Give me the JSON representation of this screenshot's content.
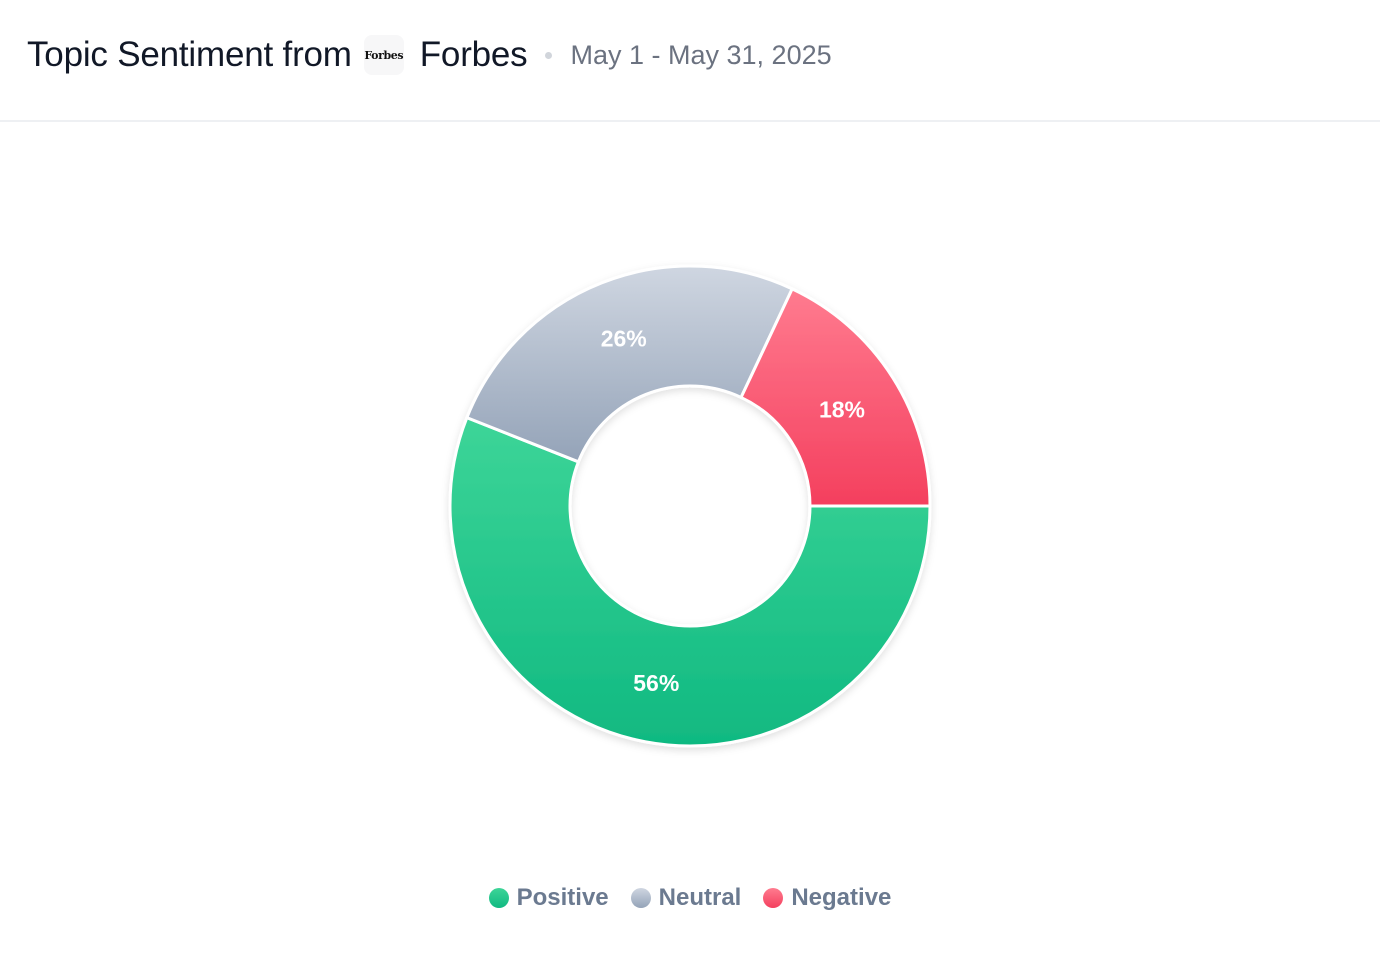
{
  "header": {
    "title_prefix": "Topic Sentiment from",
    "source_logo_text": "Forbes",
    "source_name": "Forbes",
    "date_range": "May 1 - May 31, 2025"
  },
  "chart_data": {
    "type": "pie",
    "variant": "donut",
    "categories": [
      "Positive",
      "Neutral",
      "Negative"
    ],
    "values": [
      56,
      26,
      18
    ],
    "unit": "%",
    "data_labels": [
      "56%",
      "26%",
      "18%"
    ],
    "legend": "bottom-center",
    "colors": {
      "Positive": [
        "#3dd598",
        "#10b981"
      ],
      "Neutral": [
        "#cfd6e1",
        "#94a3b8"
      ],
      "Negative": [
        "#ff7b8f",
        "#f43f5e"
      ]
    },
    "label_color": "#ffffff"
  }
}
